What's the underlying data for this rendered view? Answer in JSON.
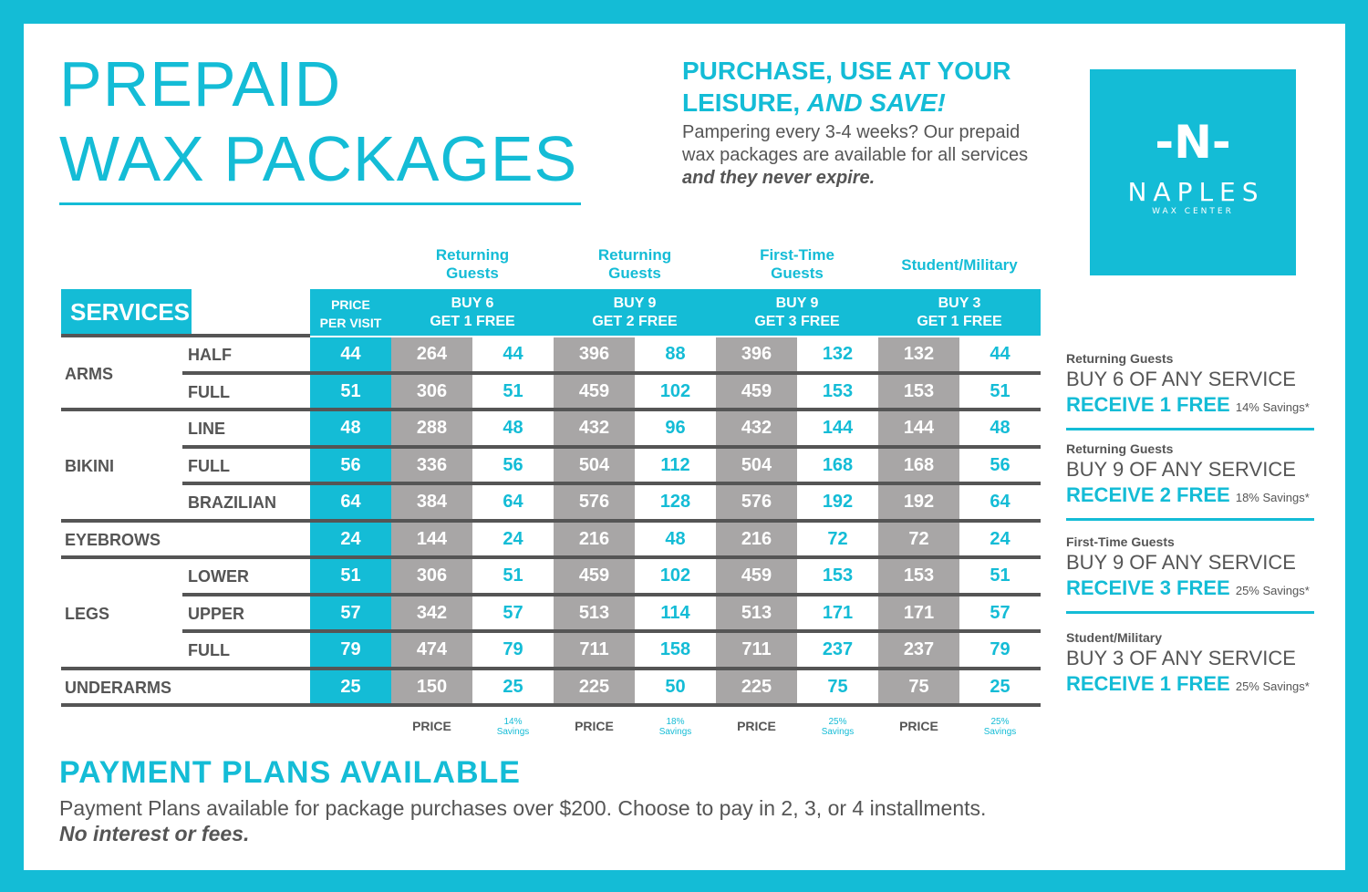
{
  "title": {
    "line1": "PREPAID",
    "line2": "WAX PACKAGES"
  },
  "tagline": {
    "line1": "PURCHASE, USE AT YOUR",
    "line2a": "LEISURE, ",
    "line2b": "AND SAVE!"
  },
  "intro": {
    "text": "Pampering every 3-4 weeks? Our prepaid wax packages are available for all services ",
    "bold": "and they never expire."
  },
  "logo": {
    "mark": "-N-",
    "name": "NAPLES",
    "sub": "WAX CENTER"
  },
  "colors": {
    "accent": "#14bcd6",
    "gray_cell": "#a8a6a6",
    "text": "#555555"
  },
  "table": {
    "services_label": "SERVICES",
    "price_header": [
      "PRICE",
      "PER  VISIT"
    ],
    "packages": [
      {
        "group": [
          "Returning",
          "Guests"
        ],
        "deal": [
          "BUY 6",
          "GET 1 FREE"
        ],
        "savings": "14%"
      },
      {
        "group": [
          "Returning",
          "Guests"
        ],
        "deal": [
          "BUY 9",
          "GET 2 FREE"
        ],
        "savings": "18%"
      },
      {
        "group": [
          "First-Time",
          "Guests"
        ],
        "deal": [
          "BUY 9",
          "GET 3 FREE"
        ],
        "savings": "25%"
      },
      {
        "group": [
          "Student/Military",
          ""
        ],
        "deal": [
          "BUY 3",
          "GET 1 FREE"
        ],
        "savings": "25%"
      }
    ],
    "footer_price": "PRICE",
    "footer_savings": "Savings",
    "rows": [
      {
        "service": "ARMS",
        "sub": "HALF",
        "values": [
          44,
          264,
          44,
          396,
          88,
          396,
          132,
          132,
          44
        ]
      },
      {
        "service": "",
        "sub": "FULL",
        "values": [
          51,
          306,
          51,
          459,
          102,
          459,
          153,
          153,
          51
        ]
      },
      {
        "service": "BIKINI",
        "sub": "LINE",
        "values": [
          48,
          288,
          48,
          432,
          96,
          432,
          144,
          144,
          48
        ]
      },
      {
        "service": "",
        "sub": "FULL",
        "values": [
          56,
          336,
          56,
          504,
          112,
          504,
          168,
          168,
          56
        ]
      },
      {
        "service": "",
        "sub": "BRAZILIAN",
        "values": [
          64,
          384,
          64,
          576,
          128,
          576,
          192,
          192,
          64
        ]
      },
      {
        "service": "EYEBROWS",
        "sub": "",
        "values": [
          24,
          144,
          24,
          216,
          48,
          216,
          72,
          72,
          24
        ]
      },
      {
        "service": "LEGS",
        "sub": "LOWER",
        "values": [
          51,
          306,
          51,
          459,
          102,
          459,
          153,
          153,
          51
        ]
      },
      {
        "service": "",
        "sub": "UPPER",
        "values": [
          57,
          342,
          57,
          513,
          114,
          513,
          171,
          171,
          57
        ]
      },
      {
        "service": "",
        "sub": "FULL",
        "values": [
          79,
          474,
          79,
          711,
          158,
          711,
          237,
          237,
          79
        ]
      },
      {
        "service": "UNDERARMS",
        "sub": "",
        "values": [
          25,
          150,
          25,
          225,
          50,
          225,
          75,
          75,
          25
        ]
      }
    ]
  },
  "sidebar": [
    {
      "group": "Returning Guests",
      "buy": "BUY 6 OF ANY SERVICE",
      "receive": "RECEIVE 1 FREE",
      "savings": "14% Savings*"
    },
    {
      "group": "Returning Guests",
      "buy": "BUY 9 OF ANY SERVICE",
      "receive": "RECEIVE 2 FREE",
      "savings": "18% Savings*"
    },
    {
      "group": "First-Time Guests",
      "buy": "BUY 9 OF ANY SERVICE",
      "receive": "RECEIVE 3 FREE",
      "savings": "25% Savings*"
    },
    {
      "group": "Student/Military",
      "buy": "BUY 3 OF ANY SERVICE",
      "receive": "RECEIVE 1 FREE",
      "savings": "25% Savings*"
    }
  ],
  "payment": {
    "heading": "PAYMENT PLANS AVAILABLE",
    "text": "Payment Plans available for package purchases over $200. Choose to pay in 2, 3, or 4 installments.",
    "bold": "No interest or fees."
  }
}
